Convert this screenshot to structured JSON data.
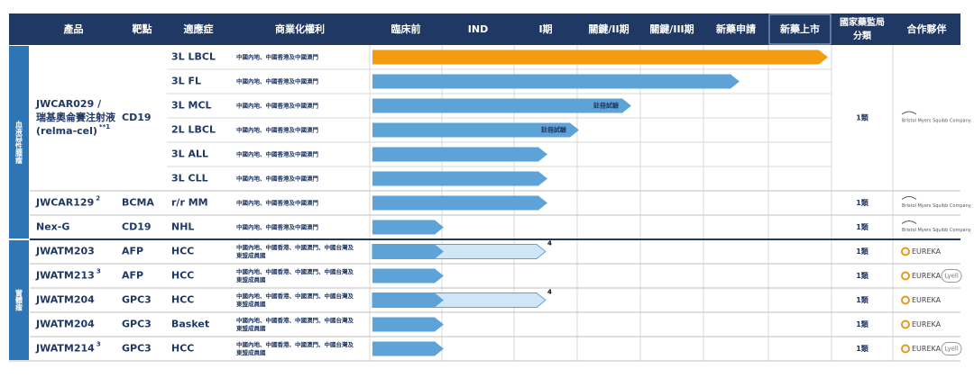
{
  "header": {
    "columns": [
      "產品",
      "靶點",
      "適應症",
      "商業化權利",
      "臨床前",
      "IND",
      "I期",
      "關鍵/II期",
      "關鍵/III期",
      "新藥申請",
      "新藥上市",
      "國家藥監局分類",
      "合作夥伴"
    ]
  },
  "groups": [
    {
      "label": "血液惡性腫瘤",
      "products": [
        {
          "name": [
            "JWCAR029 /",
            "瑞基奧侖賽注射液",
            "(relma-cel)"
          ],
          "note": "**1",
          "target": "CD19",
          "classification": "1類",
          "partners": [
            "Bristol Myers Squibb Company"
          ],
          "indications": [
            {
              "name": "3L LBCL",
              "rights": [
                "中國內地、中國香港及中國澳門"
              ]
            },
            {
              "name": "3L FL",
              "rights": [
                "中國內地、中國香港及中國澳門"
              ]
            },
            {
              "name": "3L MCL",
              "rights": [
                "中國內地、中國香港及中國澳門"
              ],
              "status": "註冊試驗"
            },
            {
              "name": "2L LBCL",
              "rights": [
                "中國內地、中國香港及中國澳門"
              ],
              "status": "註冊試驗"
            },
            {
              "name": "3L ALL",
              "rights": [
                "中國內地、中國香港及中國澳門"
              ]
            },
            {
              "name": "3L CLL",
              "rights": [
                "中國內地、中國香港及中國澳門"
              ]
            }
          ]
        },
        {
          "name": [
            "JWCAR129"
          ],
          "note": "2",
          "target": "BCMA",
          "classification": "1類",
          "partners": [
            "Bristol Myers Squibb Company"
          ],
          "indications": [
            {
              "name": "r/r MM",
              "rights": [
                "中國內地、中國香港及中國澳門"
              ]
            }
          ]
        },
        {
          "name": [
            "Nex-G"
          ],
          "target": "CD19",
          "classification": "1類",
          "partners": [
            "Bristol Myers Squibb Company"
          ],
          "indications": [
            {
              "name": "NHL",
              "rights": [
                "中國內地、中國香港及中國澳門"
              ]
            }
          ]
        }
      ]
    },
    {
      "label": "實體瘤",
      "products": [
        {
          "name": [
            "JWATM203"
          ],
          "target": "AFP",
          "classification": "1類",
          "partners": [
            "EUREKA"
          ],
          "indications": [
            {
              "name": "HCC",
              "rights": [
                "中國內地、中國香港、中國澳門、中國台灣及",
                "東盟成員國"
              ],
              "note": "4"
            }
          ]
        },
        {
          "name": [
            "JWATM213"
          ],
          "note": "3",
          "target": "AFP",
          "classification": "1類",
          "partners": [
            "EUREKA",
            "Lyell"
          ],
          "indications": [
            {
              "name": "HCC",
              "rights": [
                "中國內地、中國香港、中國澳門、中國台灣及",
                "東盟成員國"
              ]
            }
          ]
        },
        {
          "name": [
            "JWATM204"
          ],
          "target": "GPC3",
          "classification": "1類",
          "partners": [
            "EUREKA"
          ],
          "indications": [
            {
              "name": "HCC",
              "rights": [
                "中國內地、中國香港、中國澳門、中國台灣及",
                "東盟成員國"
              ],
              "note": "4"
            }
          ]
        },
        {
          "name": [
            "JWATM204"
          ],
          "target": "GPC3",
          "classification": "1類",
          "partners": [
            "EUREKA"
          ],
          "indications": [
            {
              "name": "Basket",
              "rights": [
                "中國內地、中國香港、中國澳門、中國台灣及",
                "東盟成員國"
              ]
            }
          ]
        },
        {
          "name": [
            "JWATM214"
          ],
          "note": "3",
          "target": "GPC3",
          "classification": "1類",
          "partners": [
            "EUREKA",
            "Lyell"
          ],
          "indications": [
            {
              "name": "HCC",
              "rights": [
                "中國內地、中國香港、中國澳門、中國台灣及",
                "東盟成員國"
              ]
            }
          ]
        }
      ]
    }
  ]
}
